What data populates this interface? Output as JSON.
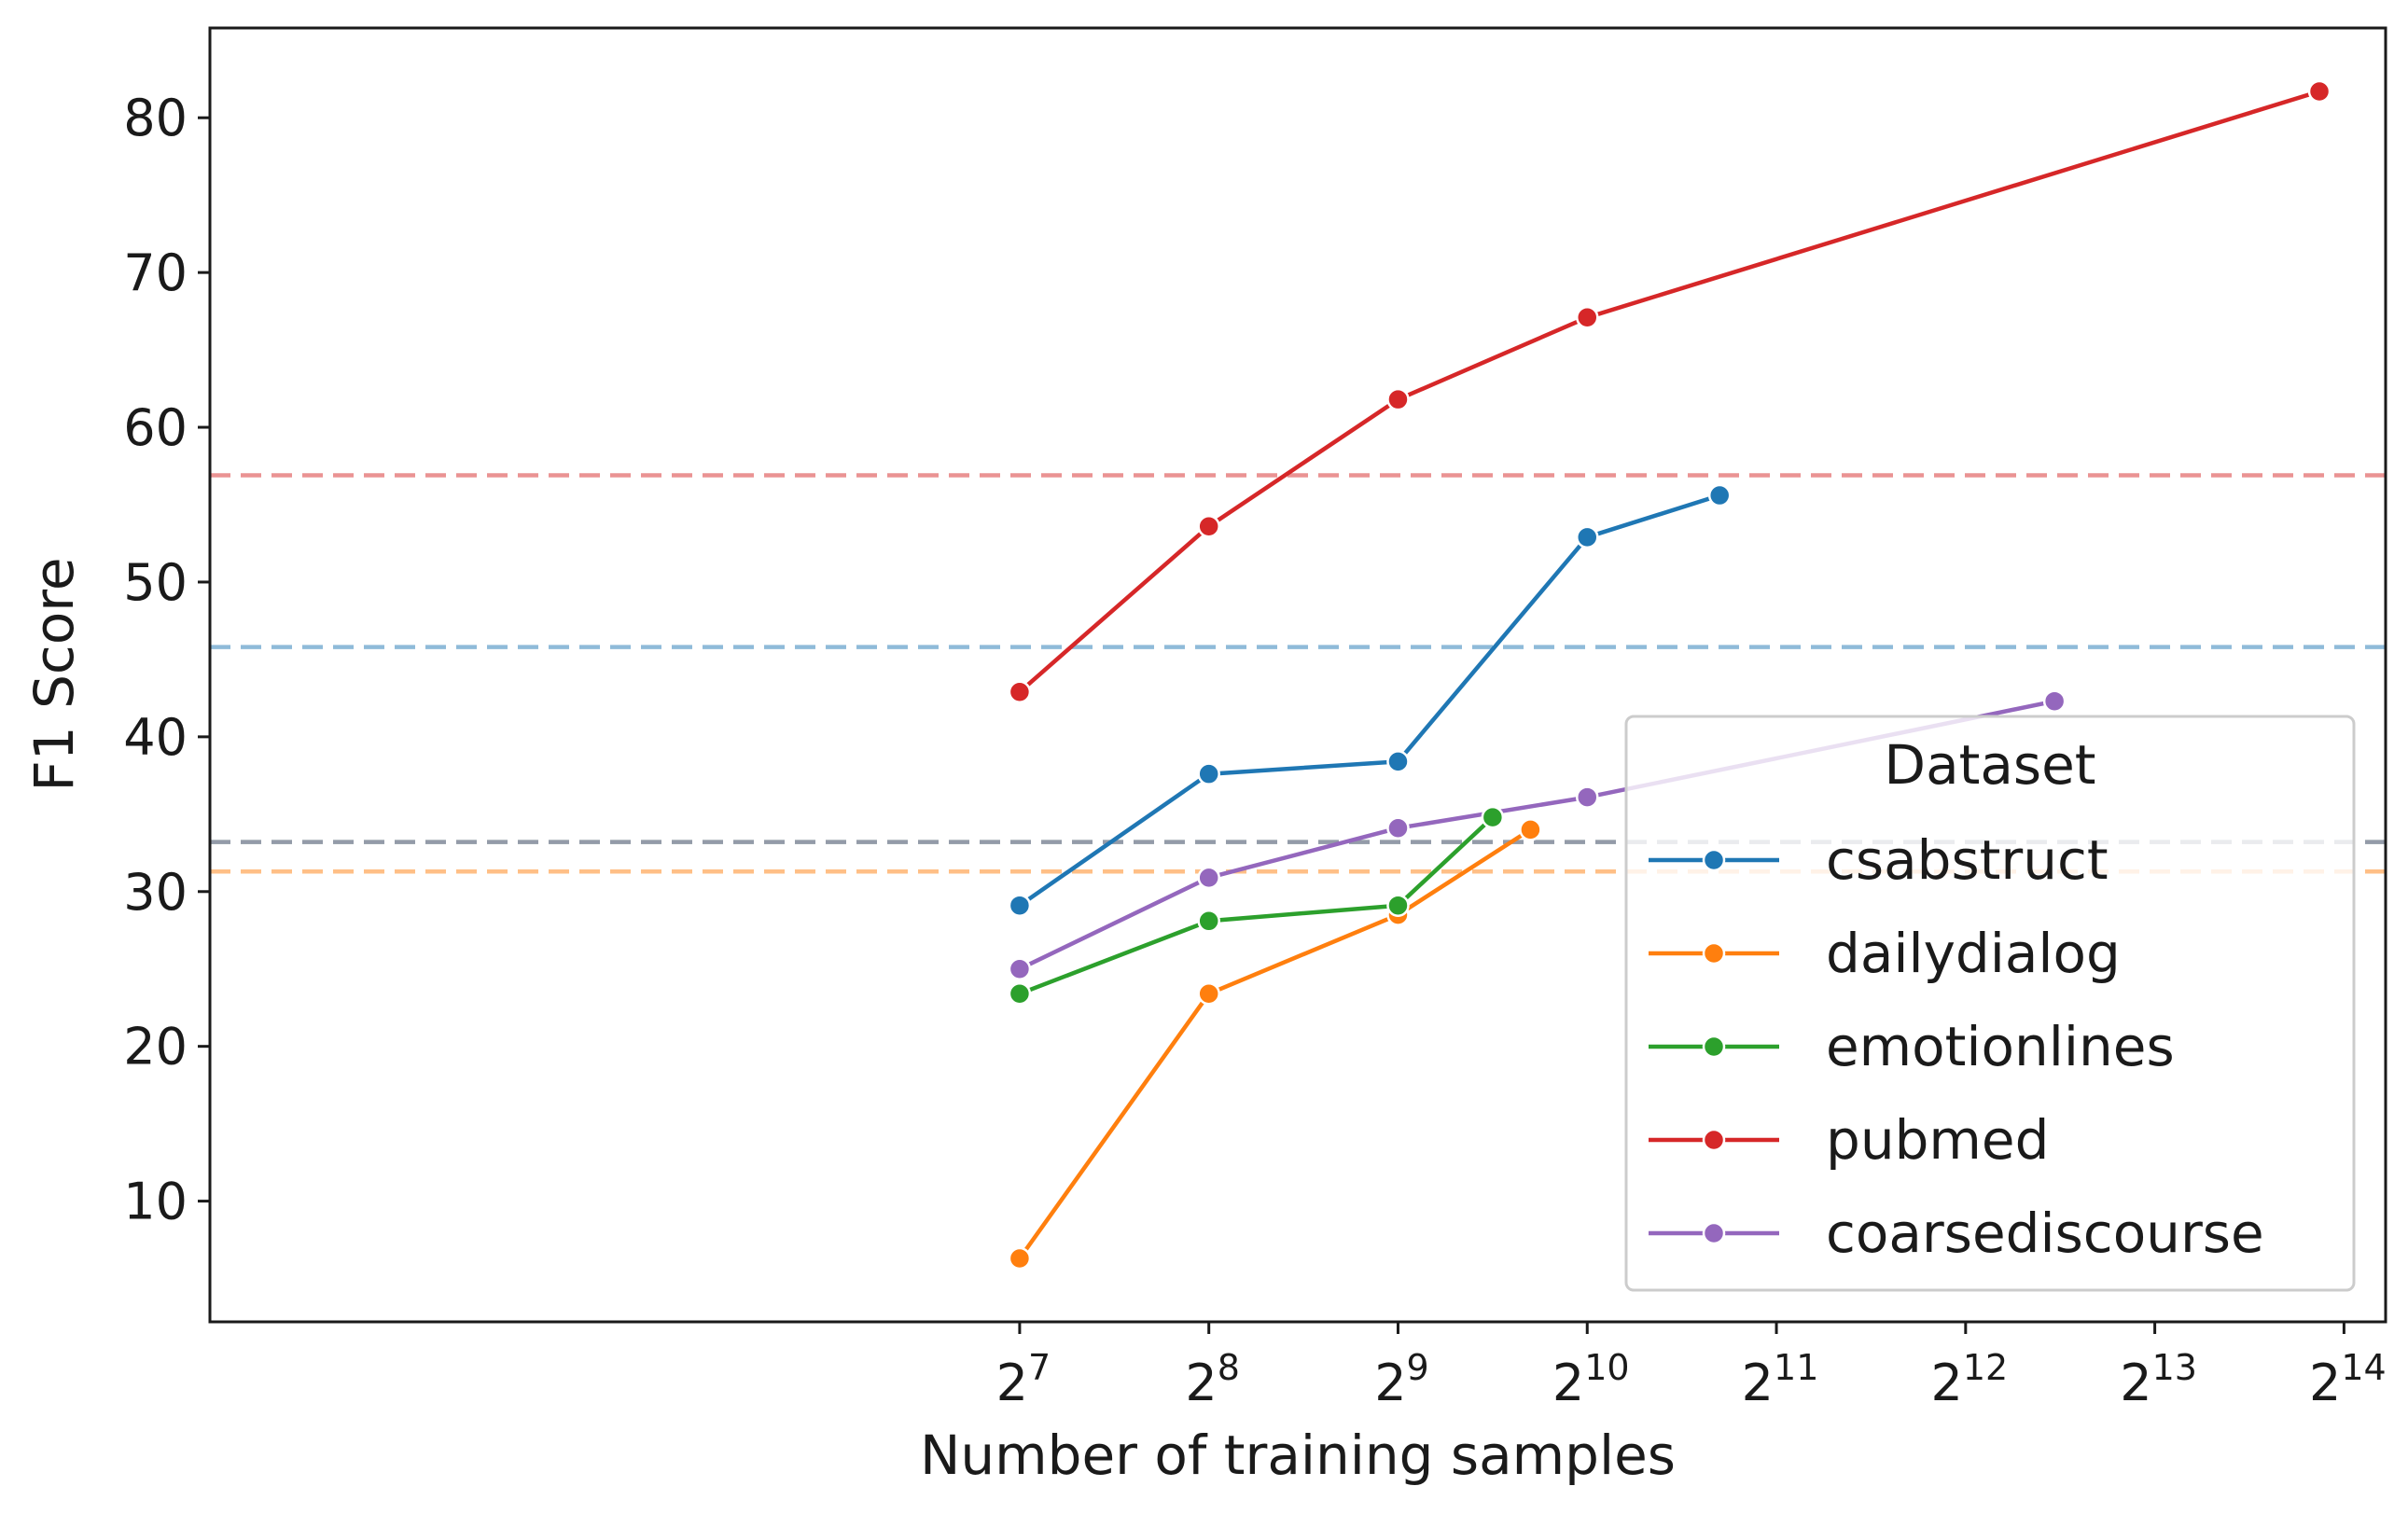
{
  "chart_data": {
    "type": "line",
    "title": "",
    "xlabel": "Number of training samples",
    "ylabel": "F1 Score",
    "x_scale": "log2",
    "xlim": [
      2.72,
      14.22
    ],
    "ylim": [
      2.2,
      85.8
    ],
    "x_ticks": [
      {
        "base": "2",
        "exp": "7",
        "value": 7
      },
      {
        "base": "2",
        "exp": "8",
        "value": 8
      },
      {
        "base": "2",
        "exp": "9",
        "value": 9
      },
      {
        "base": "2",
        "exp": "10",
        "value": 10
      },
      {
        "base": "2",
        "exp": "11",
        "value": 11
      },
      {
        "base": "2",
        "exp": "12",
        "value": 12
      },
      {
        "base": "2",
        "exp": "13",
        "value": 13
      },
      {
        "base": "2",
        "exp": "14",
        "value": 14
      }
    ],
    "y_ticks": [
      10,
      20,
      30,
      40,
      50,
      60,
      70,
      80
    ],
    "grid": false,
    "legend_title": "Dataset",
    "legend_position": "lower-right",
    "series": [
      {
        "name": "csabstruct",
        "color": "#1f77b4",
        "x": [
          7,
          8,
          9,
          10,
          10.7
        ],
        "y": [
          29.1,
          37.6,
          38.4,
          52.9,
          55.6
        ],
        "baseline": 45.8
      },
      {
        "name": "dailydialog",
        "color": "#ff7f0e",
        "x": [
          7,
          8,
          9,
          9.7
        ],
        "y": [
          6.3,
          23.4,
          28.5,
          34.0
        ],
        "baseline": 31.3
      },
      {
        "name": "emotionlines",
        "color": "#2ca02c",
        "x": [
          7,
          8,
          9,
          9.5
        ],
        "y": [
          23.4,
          28.1,
          29.1,
          34.8
        ],
        "baseline": 33.2
      },
      {
        "name": "pubmed",
        "color": "#d62728",
        "x": [
          7,
          8,
          9,
          10,
          13.87
        ],
        "y": [
          42.9,
          53.6,
          61.8,
          67.1,
          81.7
        ],
        "baseline": 56.9
      },
      {
        "name": "coarsediscourse",
        "color": "#9467bd",
        "x": [
          7,
          8,
          9,
          10,
          12.47
        ],
        "y": [
          25.0,
          30.9,
          34.1,
          36.1,
          42.3
        ],
        "baseline": 33.2
      }
    ]
  }
}
